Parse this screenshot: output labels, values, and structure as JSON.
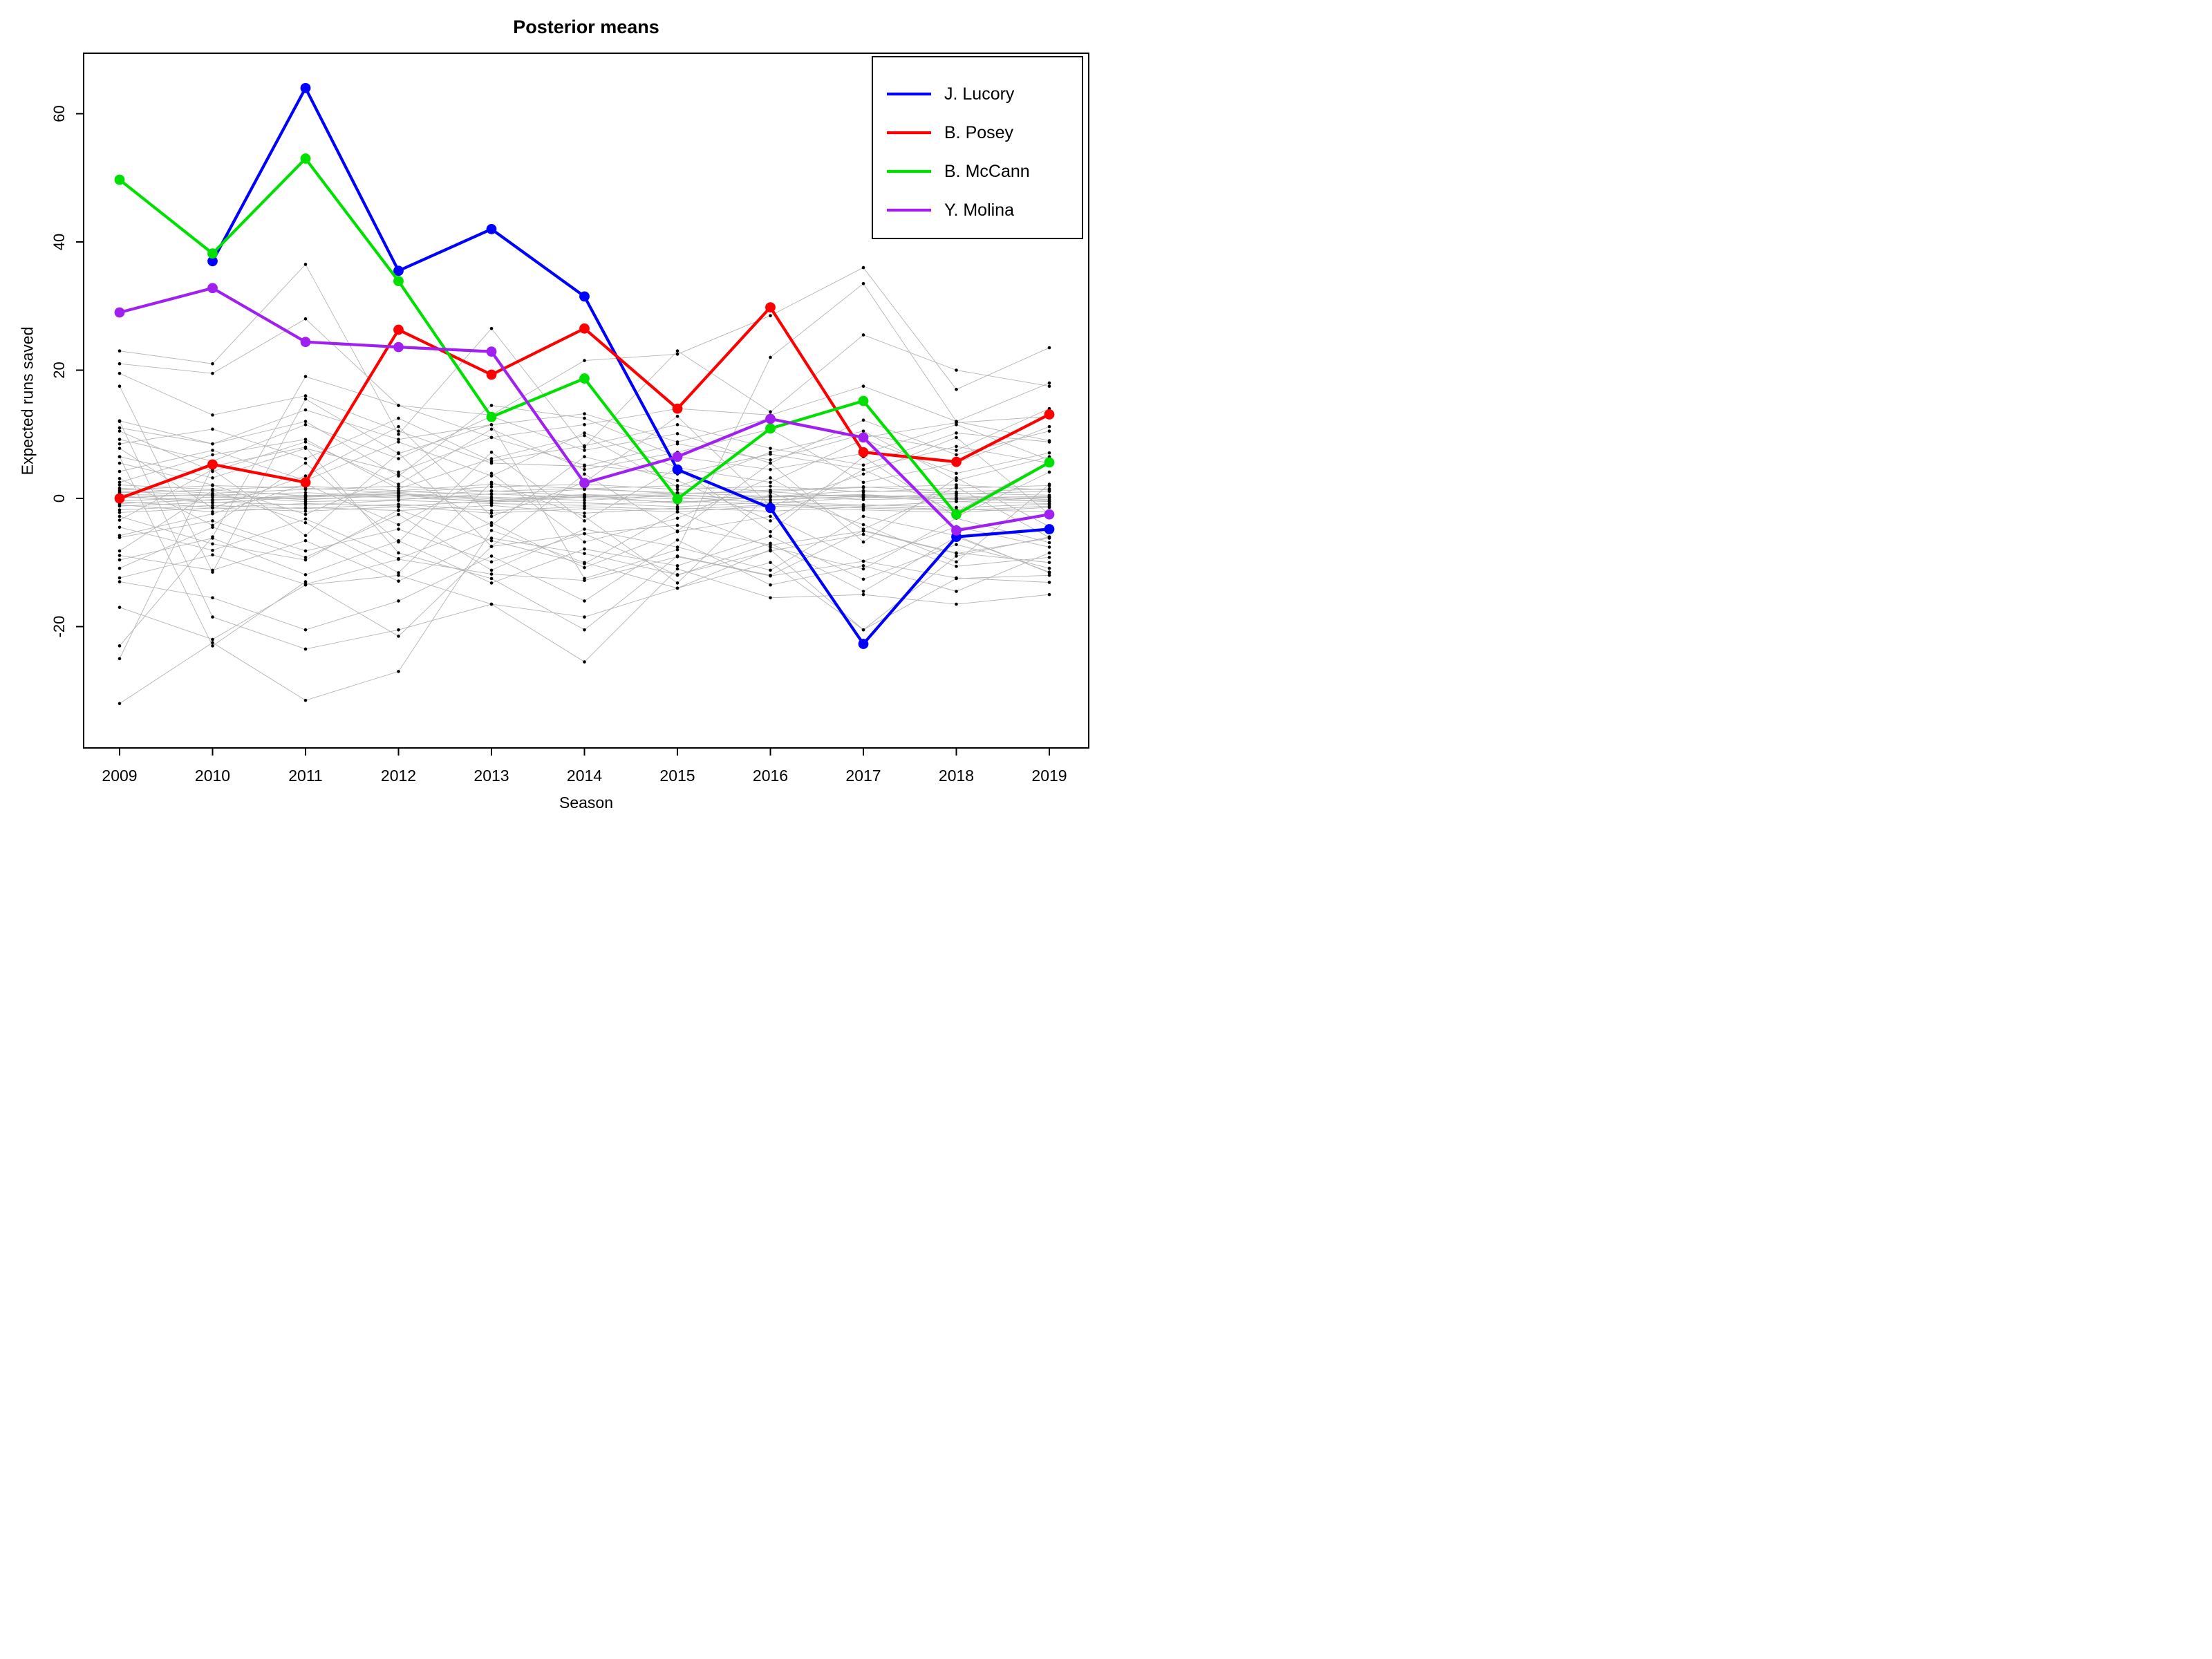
{
  "title": "Posterior means",
  "x_axis": {
    "label": "Season",
    "ticks": [
      2009,
      2010,
      2011,
      2012,
      2013,
      2014,
      2015,
      2016,
      2017,
      2018,
      2019
    ]
  },
  "y_axis": {
    "label": "Expected runs saved",
    "ticks": [
      -20,
      0,
      20,
      40,
      60
    ]
  },
  "legend": {
    "position": "top-right",
    "entries": [
      {
        "label": "J. Lucory",
        "color": "#0000FF"
      },
      {
        "label": "B. Posey",
        "color": "#FF0000"
      },
      {
        "label": "B. McCann",
        "color": "#00E000"
      },
      {
        "label": "Y. Molina",
        "color": "#A020F0"
      }
    ]
  },
  "chart_data": {
    "type": "line",
    "x": [
      2009,
      2010,
      2011,
      2012,
      2013,
      2014,
      2015,
      2016,
      2017,
      2018,
      2019
    ],
    "xlabel": "Season",
    "ylabel": "Expected runs saved",
    "ylim": [
      -39,
      69
    ],
    "grid": false,
    "series": [
      {
        "name": "J. Lucory",
        "color": "#0000FF",
        "values": [
          null,
          37,
          64,
          35.5,
          42,
          31.5,
          4.5,
          -1.5,
          -22.7,
          -6,
          -4.8
        ]
      },
      {
        "name": "B. Posey",
        "color": "#FF0000",
        "values": [
          0,
          5.3,
          2.5,
          26.3,
          19.3,
          26.5,
          14,
          29.8,
          7.2,
          5.7,
          13.1
        ]
      },
      {
        "name": "B. McCann",
        "color": "#00E000",
        "values": [
          49.7,
          38.2,
          53,
          33.9,
          12.7,
          18.7,
          -0.1,
          10.9,
          15.2,
          -2.5,
          5.6
        ]
      },
      {
        "name": "Y. Molina",
        "color": "#A020F0",
        "values": [
          29,
          32.8,
          24.4,
          23.6,
          22.9,
          2.4,
          6.5,
          12.4,
          9.5,
          -5,
          -2.5
        ]
      }
    ],
    "background_color": "#b4b4b4",
    "point_color": "#000000",
    "background_series": [
      [
        -32,
        -22.5,
        -31.5,
        -27,
        -5,
        -10,
        -14,
        -8,
        -20.5,
        -9,
        -6
      ],
      [
        23,
        21,
        36.5,
        10,
        26.5,
        8,
        23,
        13.5,
        25.5,
        20,
        17.5
      ],
      [
        21,
        19.5,
        28,
        14.5,
        13,
        21.5,
        22.5,
        28.5,
        36,
        17,
        23.5
      ],
      [
        17.5,
        -11.5,
        15.5,
        7,
        11.5,
        -12.5,
        -8,
        22,
        33.5,
        12,
        18
      ],
      [
        12,
        -18.5,
        -23.5,
        -20.5,
        -16.5,
        -25.5,
        -11,
        -15.5,
        -15,
        -16.5,
        -15
      ],
      [
        -17,
        -22,
        -13.5,
        -12,
        -16.5,
        -18.5,
        -14,
        -10,
        -20.5,
        -12.5,
        -12
      ],
      [
        -23,
        -6,
        19,
        14.5,
        9.5,
        11.5,
        14,
        13,
        17.5,
        12,
        9
      ],
      [
        -25,
        5,
        8,
        -8.5,
        -12.5,
        -20.5,
        -9,
        -12,
        -5,
        -8.5,
        -10
      ],
      [
        19.5,
        13,
        16,
        10.5,
        5.5,
        5,
        8.5,
        6,
        10,
        7.5,
        14
      ],
      [
        11,
        8.5,
        12,
        3.5,
        14.5,
        12.5,
        6.5,
        4.5,
        7,
        11.5,
        6
      ],
      [
        -13,
        -15.5,
        -20.5,
        -16,
        -9,
        -16,
        -6.5,
        -13.5,
        -10.5,
        -14.5,
        -8.5
      ],
      [
        6.5,
        -23,
        -13,
        -21.5,
        -7.5,
        -5.5,
        -12,
        -7,
        -14.5,
        -6,
        -11.5
      ],
      [
        6.5,
        3.2,
        7.8,
        4.1,
        9.5,
        5.2,
        3.8,
        6.9,
        4.5,
        8.1,
        5.5
      ],
      [
        -6.1,
        -3.5,
        -8.2,
        -4.8,
        -9.9,
        -5.5,
        -4.2,
        -7.3,
        -5.1,
        -8.6,
        -6.2
      ],
      [
        4.2,
        7.5,
        2.8,
        8.8,
        3.5,
        10.2,
        4.8,
        2.5,
        9.2,
        3.9,
        7.1
      ],
      [
        -4.5,
        -8.1,
        -3.2,
        -9.4,
        -3.8,
        -10.8,
        -5.2,
        -2.8,
        -9.8,
        -4.4,
        -7.6
      ],
      [
        9.2,
        5.8,
        11.5,
        6.2,
        12.8,
        7.5,
        10.1,
        5.5,
        12.2,
        6.8,
        10.5
      ],
      [
        -9.6,
        -6.2,
        -11.9,
        -6.6,
        -13.2,
        -7.9,
        -10.5,
        -5.9,
        -12.6,
        -7.2,
        -10.9
      ],
      [
        3.1,
        -4.2,
        5.5,
        -6.8,
        7.2,
        -3.5,
        4.8,
        -5.2,
        6.5,
        -2.9,
        4.1
      ],
      [
        -3.4,
        4.5,
        -5.8,
        7.1,
        -7.5,
        3.8,
        -5.1,
        5.5,
        -6.8,
        3.2,
        -4.4
      ],
      [
        8.5,
        10.8,
        6.2,
        12.5,
        5.8,
        8.2,
        11.5,
        7.8,
        5.2,
        10.2,
        8.8
      ],
      [
        -8.9,
        -11.2,
        -6.6,
        -12.9,
        -6.2,
        -8.6,
        -11.9,
        -8.2,
        -5.6,
        -10.6,
        -9.2
      ],
      [
        5.5,
        2.1,
        -2.5,
        3.8,
        -4.2,
        6.5,
        2.8,
        -3.5,
        4.5,
        -2.1,
        5.8
      ],
      [
        -5.8,
        -2.4,
        2.2,
        -4.1,
        3.9,
        -6.8,
        -3.1,
        3.2,
        -4.8,
        1.8,
        -6.1
      ],
      [
        12.1,
        8.5,
        13.8,
        9.2,
        11.5,
        13.2,
        8.8,
        12.5,
        9.5,
        11.8,
        12.8
      ],
      [
        -12.4,
        -8.8,
        -13.4,
        -9.5,
        -11.8,
        -12.8,
        -9.1,
        -12.1,
        -9.8,
        -12.4,
        -13.1
      ],
      [
        2.5,
        6.8,
        9.2,
        1.5,
        6.2,
        9.8,
        1.8,
        7.2,
        10.5,
        2.8,
        6.5
      ],
      [
        -2.8,
        -7.1,
        -9.6,
        -1.8,
        -6.6,
        -10.2,
        -2.1,
        -7.6,
        -11,
        -3.1,
        -6.9
      ],
      [
        7.8,
        -1.5,
        3.5,
        11.2,
        -2.8,
        2.5,
        12.8,
        -1.2,
        3.8,
        9.5,
        -2.5
      ],
      [
        -8.2,
        1.2,
        -3.8,
        -11.6,
        2.5,
        -2.8,
        -13.2,
        0.9,
        -4.1,
        -9.9,
        2.2
      ],
      [
        10.5,
        4.2,
        8.8,
        2.2,
        10.8,
        4.5,
        7.2,
        10.8,
        2.5,
        5.5,
        11.2
      ],
      [
        -10.9,
        -4.5,
        -9.2,
        -2.5,
        -11.2,
        -4.8,
        -7.6,
        -11.2,
        -2.8,
        -5.8,
        -11.6
      ],
      [
        0.2,
        -0.3,
        0.5,
        0.1,
        -0.4,
        0.3,
        -0.1,
        0.4,
        -0.2,
        0.1,
        0.3
      ],
      [
        -0.4,
        0.2,
        -0.1,
        0.4,
        0.2,
        -0.3,
        0.5,
        -0.2,
        0.3,
        -0.5,
        0.1
      ],
      [
        0.6,
        0.4,
        -0.5,
        -0.2,
        0.7,
        0.1,
        -0.6,
        0.2,
        0.5,
        -0.1,
        -0.4
      ],
      [
        -0.8,
        -0.2,
        0.3,
        0.8,
        -0.1,
        0.6,
        0.2,
        -0.7,
        0.1,
        0.4,
        -0.2
      ],
      [
        1.1,
        0.5,
        0.9,
        0.3,
        1.2,
        0.4,
        0.8,
        1,
        0.2,
        0.7,
        1.1
      ],
      [
        -1.2,
        -0.6,
        -1,
        -0.3,
        -0.8,
        -1.1,
        -0.4,
        -0.9,
        -1.2,
        -0.5,
        -0.8
      ],
      [
        0.9,
        1.3,
        0.4,
        1.1,
        0.6,
        1.4,
        0.9,
        0.3,
        1.2,
        0.8,
        0.5
      ],
      [
        -0.5,
        -1.4,
        -0.8,
        -1.2,
        -0.4,
        -0.7,
        -1.3,
        -0.6,
        -1,
        -1.4,
        -0.9
      ],
      [
        1.6,
        0.8,
        1.4,
        1.9,
        1.1,
        1.6,
        0.7,
        1.3,
        1.8,
        1,
        1.5
      ],
      [
        -1.8,
        -1.1,
        -1.6,
        -0.9,
        -1.9,
        -1.3,
        -1.7,
        -1,
        -1.5,
        -1.9,
        -1.2
      ],
      [
        0.1,
        0.6,
        -0.2,
        0.5,
        -0.6,
        0.2,
        0.6,
        -0.3,
        0.4,
        0,
        -0.5
      ],
      [
        2.1,
        1.4,
        1.9,
        1.2,
        2.2,
        1.5,
        2,
        1.1,
        1.7,
        2.1,
        1.3
      ],
      [
        -2.2,
        -1.5,
        -2,
        -1.3,
        -2.3,
        -1.6,
        -2.1,
        -1.2,
        -1.8,
        -2.2,
        -1.4
      ],
      [
        0.4,
        -0.7,
        0.2,
        0.7,
        -0.3,
        0.5,
        -0.8,
        0.3,
        0.6,
        -0.2,
        0.2
      ],
      [
        1.3,
        2,
        1.6,
        0.9,
        1.8,
        2.2,
        1.4,
        1.9,
        1,
        1.6,
        2
      ],
      [
        -1,
        -2.1,
        -1.4,
        -1.9,
        -1.1,
        -2.3,
        -1.5,
        -2,
        -1.3,
        -1.7,
        -2.1
      ]
    ]
  }
}
